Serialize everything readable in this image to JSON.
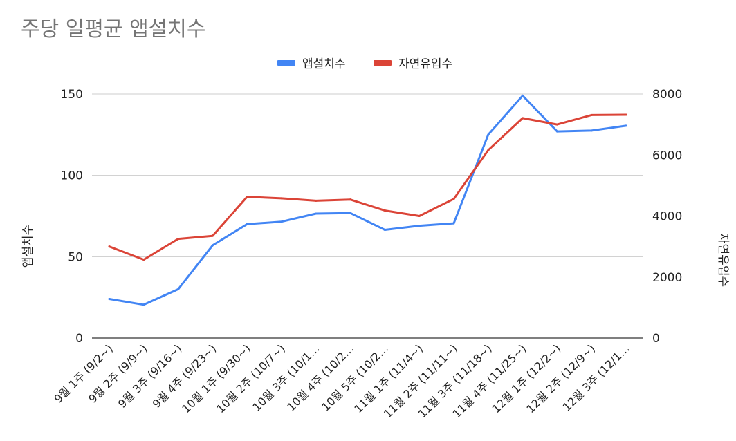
{
  "chart_data": {
    "type": "line",
    "title": "주당 일평균 앱설치수",
    "categories": [
      "9월 1주 (9/2~)",
      "9월 2주 (9/9~)",
      "9월 3주 (9/16~)",
      "9월 4주 (9/23~)",
      "10월 1주 (9/30~)",
      "10월 2주 (10/7~)",
      "10월 3주 (10/1…",
      "10월 4주 (10/2…",
      "10월 5주 (10/2…",
      "11월 1주 (11/4~)",
      "11월 2주 (11/11~)",
      "11월 3주 (11/18~)",
      "11월 4주 (11/25~)",
      "12월 1주 (12/2~)",
      "12월 2주 (12/9~)",
      "12월 3주 (12/1…"
    ],
    "series": [
      {
        "name": "앱설치수",
        "axis": "left",
        "color": "#4285F4",
        "values": [
          24,
          20.5,
          30,
          57,
          70,
          71.5,
          76.5,
          76.8,
          66.5,
          69,
          70.5,
          125,
          149,
          127,
          127.5,
          130.5
        ]
      },
      {
        "name": "자연유입수",
        "axis": "right",
        "color": "#DB4437",
        "values": [
          3000,
          2570,
          3250,
          3350,
          4630,
          4580,
          4500,
          4540,
          4180,
          4000,
          4560,
          6160,
          7210,
          7000,
          7310,
          7320
        ]
      }
    ],
    "ylabel": "앱설치수",
    "ylabel_right": "자연유입수",
    "ylim": [
      0,
      150
    ],
    "ylim_right": [
      0,
      8000
    ],
    "yticks": [
      "0",
      "50",
      "100",
      "150"
    ],
    "yticks_right": [
      "0",
      "2000",
      "4000",
      "6000",
      "8000"
    ],
    "grid": true,
    "legend_position": "top-center",
    "gridline_color": "#cccccc"
  }
}
